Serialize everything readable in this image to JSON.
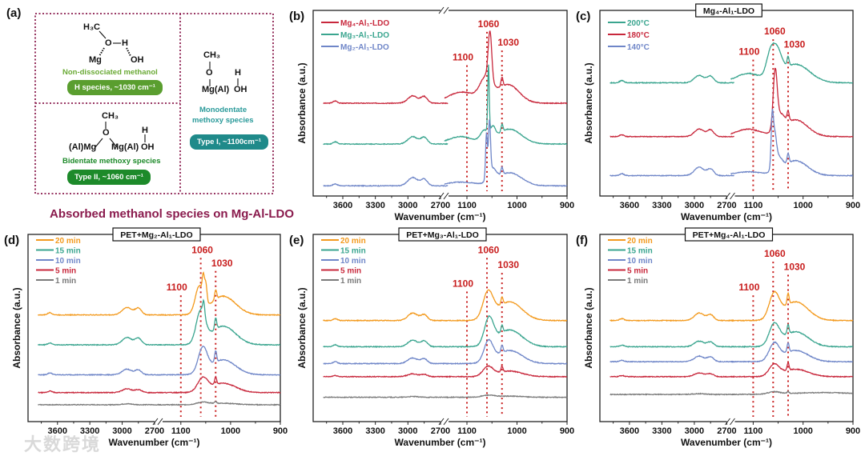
{
  "panel_a": {
    "label": "(a)",
    "caption": "Absorbed methanol species on Mg-Al-LDO",
    "non_dissociated": {
      "h3c": "H₃C",
      "o": "O",
      "h": "H",
      "mg": "Mg",
      "oh": "OH",
      "name": "Non-dissociated methanol",
      "pill": "H species, ~1030 cm⁻¹",
      "pill_color": "#5a9e2f",
      "name_color": "#6aaa35"
    },
    "bidentate": {
      "ch3": "CH₃",
      "o": "O",
      "h": "H",
      "left_metal": "(Al)Mg",
      "right_metal": "Mg(Al)",
      "oh": "OH",
      "name": "Bidentate methoxy species",
      "pill": "Type II, ~1060 cm⁻¹",
      "pill_color": "#1d8a2a",
      "name_color": "#1d8a2a"
    },
    "monodentate": {
      "ch3": "CH₃",
      "o": "O",
      "h": "H",
      "metal": "Mg(Al)",
      "oh": "OH",
      "name_line1": "Monodentate",
      "name_line2": "methoxy species",
      "pill": "Type I, ~1100cm⁻¹",
      "pill_color": "#1f8a8a",
      "name_color": "#2a9a9a"
    },
    "border_color": "#8a1b4d"
  },
  "watermark": "大数跨境",
  "chart_data": [
    {
      "label": "(b)",
      "type": "line",
      "title": "",
      "xlabel": "Wavenumber (cm⁻¹)",
      "ylabel": "Absorbance (a.u.)",
      "xticks_left": [
        "3600",
        "3300",
        "3000",
        "2700"
      ],
      "xticks_right": [
        "1100",
        "1000",
        "900"
      ],
      "xlim_left": [
        3800,
        2620
      ],
      "xlim_right": [
        1150,
        900
      ],
      "ylim": [
        0,
        1
      ],
      "broken_axis": true,
      "annotations": [
        {
          "x": 1100,
          "text": "1100"
        },
        {
          "x": 1060,
          "text": "1060"
        },
        {
          "x": 1030,
          "text": "1030"
        }
      ],
      "legend_placement": "top-left",
      "series": [
        {
          "name": "Mg₄-Al₁-LDO",
          "color": "#c8283c",
          "baseline": 0.5,
          "peaks": [
            [
              3670,
              0.012,
              20
            ],
            [
              2955,
              0.04,
              45
            ],
            [
              2850,
              0.035,
              30
            ],
            [
              1110,
              0.06,
              28
            ],
            [
              1062,
              0.12,
              12
            ],
            [
              1054,
              0.26,
              3.5
            ],
            [
              1030,
              0.05,
              2
            ],
            [
              1018,
              0.1,
              22
            ]
          ]
        },
        {
          "name": "Mg₃-Al₁-LDO",
          "color": "#3aa58f",
          "baseline": 0.28,
          "peaks": [
            [
              3670,
              0.012,
              20
            ],
            [
              2955,
              0.04,
              45
            ],
            [
              2850,
              0.035,
              30
            ],
            [
              1112,
              0.04,
              25
            ],
            [
              1065,
              0.06,
              8
            ],
            [
              1057,
              0.36,
              1.5
            ],
            [
              1048,
              0.06,
              5
            ],
            [
              1030,
              0.04,
              2
            ],
            [
              1015,
              0.08,
              24
            ]
          ]
        },
        {
          "name": "Mg₂-Al₁-LDO",
          "color": "#6f86c8",
          "baseline": 0.055,
          "peaks": [
            [
              3670,
              0.01,
              20
            ],
            [
              2955,
              0.045,
              45
            ],
            [
              2850,
              0.035,
              30
            ],
            [
              1112,
              0.02,
              30
            ],
            [
              1061,
              0.24,
              1.8
            ],
            [
              1055,
              0.28,
              2
            ],
            [
              1050,
              0.07,
              8
            ],
            [
              1030,
              0.04,
              2
            ],
            [
              1015,
              0.07,
              24
            ]
          ]
        }
      ]
    },
    {
      "label": "(c)",
      "type": "line",
      "title": "Mg₄-Al₁-LDO",
      "xlabel": "Wavenumber (cm⁻¹)",
      "ylabel": "Absorbance (a.u.)",
      "xticks_left": [
        "3600",
        "3300",
        "3000",
        "2700"
      ],
      "xticks_right": [
        "1100",
        "1000",
        "900"
      ],
      "xlim_left": [
        3800,
        2620
      ],
      "xlim_right": [
        1150,
        900
      ],
      "ylim": [
        0,
        1
      ],
      "broken_axis": true,
      "annotations": [
        {
          "x": 1100,
          "text": "1100"
        },
        {
          "x": 1060,
          "text": "1060"
        },
        {
          "x": 1030,
          "text": "1030"
        }
      ],
      "legend_placement": "top-left",
      "series": [
        {
          "name": "200°C",
          "color": "#3aa58f",
          "baseline": 0.61,
          "peaks": [
            [
              3670,
              0.012,
              20
            ],
            [
              2955,
              0.04,
              45
            ],
            [
              2850,
              0.035,
              30
            ],
            [
              1110,
              0.05,
              25
            ],
            [
              1066,
              0.12,
              8
            ],
            [
              1052,
              0.13,
              9
            ],
            [
              1030,
              0.05,
              2
            ],
            [
              1015,
              0.1,
              28
            ]
          ]
        },
        {
          "name": "180°C",
          "color": "#c8283c",
          "baseline": 0.32,
          "peaks": [
            [
              3670,
              0.01,
              20
            ],
            [
              2955,
              0.04,
              45
            ],
            [
              2850,
              0.035,
              30
            ],
            [
              1110,
              0.04,
              25
            ],
            [
              1056,
              0.3,
              4
            ],
            [
              1046,
              0.08,
              9
            ],
            [
              1030,
              0.05,
              2
            ],
            [
              1015,
              0.09,
              24
            ]
          ]
        },
        {
          "name": "140°C",
          "color": "#6f86c8",
          "baseline": 0.11,
          "peaks": [
            [
              3670,
              0.01,
              20
            ],
            [
              2955,
              0.045,
              45
            ],
            [
              2850,
              0.035,
              30
            ],
            [
              1110,
              0.02,
              30
            ],
            [
              1062,
              0.2,
              2
            ],
            [
              1058,
              0.18,
              4
            ],
            [
              1050,
              0.07,
              8
            ],
            [
              1030,
              0.05,
              2
            ],
            [
              1015,
              0.08,
              24
            ]
          ]
        }
      ]
    },
    {
      "label": "(d)",
      "type": "line",
      "title": "PET+Mg₂-Al₁-LDO",
      "xlabel": "Wavenumber (cm⁻¹)",
      "ylabel": "Absorbance (a.u.)",
      "xticks_left": [
        "3600",
        "3300",
        "3000",
        "2700"
      ],
      "xticks_right": [
        "1100",
        "1000",
        "900"
      ],
      "xlim_left": [
        3800,
        2620
      ],
      "xlim_right": [
        1150,
        900
      ],
      "ylim": [
        0,
        1
      ],
      "broken_axis": true,
      "annotations": [
        {
          "x": 1100,
          "text": "1100"
        },
        {
          "x": 1060,
          "text": "1060"
        },
        {
          "x": 1030,
          "text": "1030"
        }
      ],
      "legend_placement": "top-left",
      "series": [
        {
          "name": "20 min",
          "color": "#f39a1e",
          "baseline": 0.57,
          "peaks": [
            [
              3670,
              0.012,
              20
            ],
            [
              2955,
              0.04,
              45
            ],
            [
              2850,
              0.035,
              30
            ],
            [
              1063,
              0.14,
              8
            ],
            [
              1055,
              0.1,
              2
            ],
            [
              1050,
              0.1,
              2.5
            ],
            [
              1030,
              0.05,
              2
            ],
            [
              1015,
              0.1,
              25
            ]
          ]
        },
        {
          "name": "15 min",
          "color": "#3aa58f",
          "baseline": 0.41,
          "peaks": [
            [
              3670,
              0.01,
              20
            ],
            [
              2955,
              0.04,
              45
            ],
            [
              2850,
              0.035,
              30
            ],
            [
              1060,
              0.17,
              9
            ],
            [
              1054,
              0.07,
              2
            ],
            [
              1030,
              0.06,
              2
            ],
            [
              1015,
              0.1,
              25
            ]
          ]
        },
        {
          "name": "10 min",
          "color": "#6f86c8",
          "baseline": 0.25,
          "peaks": [
            [
              3670,
              0.01,
              20
            ],
            [
              2955,
              0.03,
              45
            ],
            [
              2850,
              0.025,
              30
            ],
            [
              1056,
              0.13,
              9
            ],
            [
              1030,
              0.06,
              2
            ],
            [
              1015,
              0.08,
              25
            ]
          ]
        },
        {
          "name": "5 min",
          "color": "#c8283c",
          "baseline": 0.155,
          "peaks": [
            [
              3670,
              0.008,
              20
            ],
            [
              2955,
              0.02,
              45
            ],
            [
              2850,
              0.015,
              30
            ],
            [
              1056,
              0.07,
              10
            ],
            [
              1030,
              0.04,
              2
            ],
            [
              1015,
              0.05,
              25
            ]
          ]
        },
        {
          "name": "1 min",
          "color": "#7a7a7a",
          "baseline": 0.09,
          "peaks": [
            [
              2955,
              0.005,
              45
            ],
            [
              1056,
              0.012,
              12
            ],
            [
              1030,
              0.01,
              2
            ],
            [
              1015,
              0.008,
              25
            ]
          ]
        }
      ]
    },
    {
      "label": "(e)",
      "type": "line",
      "title": "PET+Mg₃-Al₁-LDO",
      "xlabel": "Wavenumber (cm⁻¹)",
      "ylabel": "Absorbance (a.u.)",
      "xticks_left": [
        "3600",
        "3300",
        "3000",
        "2700"
      ],
      "xticks_right": [
        "1100",
        "1000",
        "900"
      ],
      "xlim_left": [
        3800,
        2620
      ],
      "xlim_right": [
        1150,
        900
      ],
      "ylim": [
        0,
        1
      ],
      "broken_axis": true,
      "annotations": [
        {
          "x": 1100,
          "text": "1100"
        },
        {
          "x": 1060,
          "text": "1060"
        },
        {
          "x": 1030,
          "text": "1030"
        }
      ],
      "legend_placement": "top-left",
      "series": [
        {
          "name": "20 min",
          "color": "#f39a1e",
          "baseline": 0.54,
          "peaks": [
            [
              3670,
              0.01,
              20
            ],
            [
              2955,
              0.04,
              45
            ],
            [
              2850,
              0.03,
              30
            ],
            [
              1058,
              0.14,
              10
            ],
            [
              1030,
              0.04,
              2
            ],
            [
              1015,
              0.1,
              25
            ]
          ]
        },
        {
          "name": "15 min",
          "color": "#3aa58f",
          "baseline": 0.4,
          "peaks": [
            [
              3670,
              0.01,
              20
            ],
            [
              2955,
              0.035,
              45
            ],
            [
              2850,
              0.03,
              30
            ],
            [
              1056,
              0.14,
              9
            ],
            [
              1030,
              0.04,
              2
            ],
            [
              1015,
              0.09,
              25
            ]
          ]
        },
        {
          "name": "10 min",
          "color": "#6f86c8",
          "baseline": 0.31,
          "peaks": [
            [
              3670,
              0.01,
              20
            ],
            [
              2955,
              0.03,
              45
            ],
            [
              2850,
              0.025,
              30
            ],
            [
              1057,
              0.11,
              9
            ],
            [
              1030,
              0.04,
              2
            ],
            [
              1015,
              0.07,
              25
            ]
          ]
        },
        {
          "name": "5 min",
          "color": "#c8283c",
          "baseline": 0.24,
          "peaks": [
            [
              3670,
              0.006,
              20
            ],
            [
              2955,
              0.015,
              45
            ],
            [
              2850,
              0.012,
              30
            ],
            [
              1058,
              0.05,
              10
            ],
            [
              1030,
              0.03,
              2
            ],
            [
              1015,
              0.03,
              25
            ]
          ]
        },
        {
          "name": "1 min",
          "color": "#7a7a7a",
          "baseline": 0.13,
          "peaks": [
            [
              2955,
              0.004,
              45
            ],
            [
              1058,
              0.01,
              12
            ],
            [
              1015,
              0.006,
              25
            ]
          ]
        }
      ]
    },
    {
      "label": "(f)",
      "type": "line",
      "title": "PET+Mg₄-Al₁-LDO",
      "xlabel": "Wavenumber (cm⁻¹)",
      "ylabel": "Absorbance (a.u.)",
      "xticks_left": [
        "3600",
        "3300",
        "3000",
        "2700"
      ],
      "xticks_right": [
        "1100",
        "1000",
        "900"
      ],
      "xlim_left": [
        3800,
        2620
      ],
      "xlim_right": [
        1150,
        900
      ],
      "ylim": [
        0,
        1
      ],
      "broken_axis": true,
      "annotations": [
        {
          "x": 1100,
          "text": "1100"
        },
        {
          "x": 1060,
          "text": "1060"
        },
        {
          "x": 1030,
          "text": "1030"
        }
      ],
      "legend_placement": "top-left",
      "series": [
        {
          "name": "20 min",
          "color": "#f39a1e",
          "baseline": 0.54,
          "peaks": [
            [
              3670,
              0.01,
              20
            ],
            [
              2955,
              0.04,
              45
            ],
            [
              2850,
              0.03,
              30
            ],
            [
              1058,
              0.13,
              10
            ],
            [
              1030,
              0.06,
              2
            ],
            [
              1015,
              0.1,
              25
            ]
          ]
        },
        {
          "name": "15 min",
          "color": "#3aa58f",
          "baseline": 0.4,
          "peaks": [
            [
              3670,
              0.008,
              20
            ],
            [
              2955,
              0.03,
              45
            ],
            [
              2850,
              0.025,
              30
            ],
            [
              1058,
              0.11,
              10
            ],
            [
              1030,
              0.05,
              2
            ],
            [
              1015,
              0.08,
              25
            ]
          ]
        },
        {
          "name": "10 min",
          "color": "#6f86c8",
          "baseline": 0.32,
          "peaks": [
            [
              3670,
              0.008,
              20
            ],
            [
              2955,
              0.03,
              45
            ],
            [
              2850,
              0.025,
              30
            ],
            [
              1058,
              0.09,
              10
            ],
            [
              1030,
              0.05,
              2
            ],
            [
              1015,
              0.06,
              25
            ]
          ]
        },
        {
          "name": "5 min",
          "color": "#c8283c",
          "baseline": 0.24,
          "peaks": [
            [
              3670,
              0.006,
              20
            ],
            [
              2955,
              0.02,
              45
            ],
            [
              2850,
              0.015,
              30
            ],
            [
              1058,
              0.06,
              10
            ],
            [
              1030,
              0.04,
              2
            ],
            [
              1015,
              0.04,
              25
            ]
          ]
        },
        {
          "name": "1 min",
          "color": "#7a7a7a",
          "baseline": 0.145,
          "peaks": [
            [
              2955,
              0.004,
              60
            ],
            [
              1058,
              0.012,
              12
            ],
            [
              1030,
              0.01,
              2
            ],
            [
              960,
              0.01,
              60
            ]
          ]
        }
      ]
    }
  ],
  "colors": {
    "annotation": "#c81e1e",
    "axis": "#222222"
  }
}
